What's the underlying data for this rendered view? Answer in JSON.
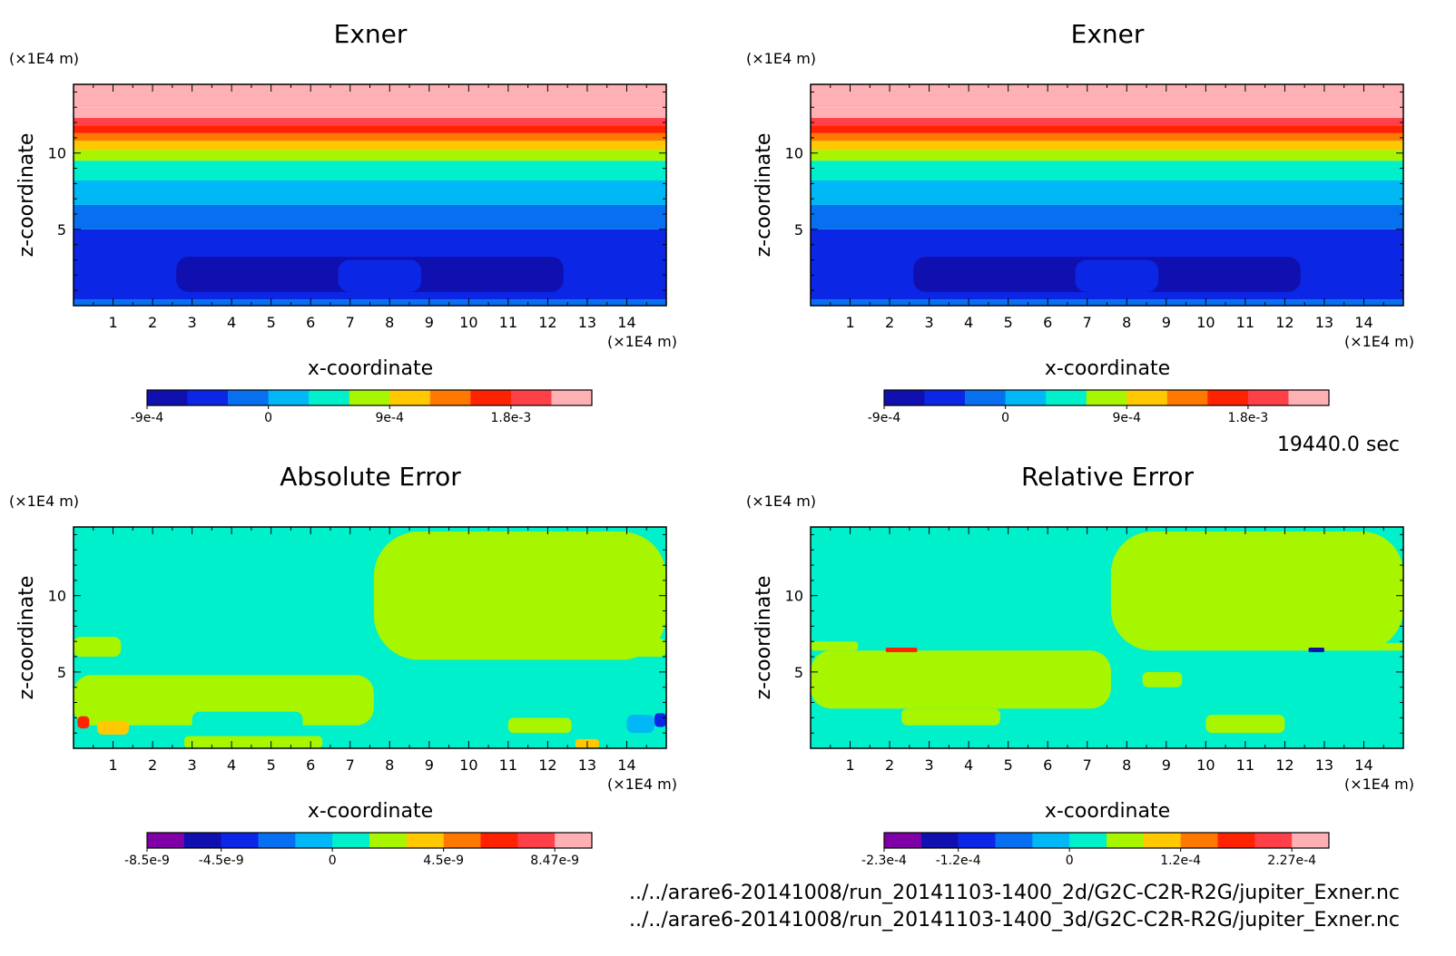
{
  "figure": {
    "time_label": "19440.0 sec",
    "files": [
      "../../arare6-20141008/run_20141103-1400_2d/G2C-C2R-R2G/jupiter_Exner.nc",
      "../../arare6-20141008/run_20141103-1400_3d/G2C-C2R-R2G/jupiter_Exner.nc"
    ]
  },
  "palette": {
    "p10": [
      "#1010b0",
      "#0c26e6",
      "#0670f0",
      "#00b8f5",
      "#00f0cc",
      "#a8f500",
      "#ffc800",
      "#ff7800",
      "#ff2200",
      "#ff4048",
      "#ffb0b4"
    ],
    "p12": [
      "#8000a8",
      "#1010b0",
      "#0c26e6",
      "#0670f0",
      "#00b8f5",
      "#00f0cc",
      "#a8f500",
      "#ffc800",
      "#ff7800",
      "#ff2200",
      "#ff4048",
      "#ffb0b4"
    ]
  },
  "chart_data": [
    {
      "type": "heatmap",
      "title": "Exner",
      "xlabel": "x-coordinate",
      "ylabel": "z-coordinate",
      "x_unit": "(×1E4 m)",
      "y_unit": "(×1E4 m)",
      "xlim": [
        0,
        15
      ],
      "ylim": [
        0,
        14.5
      ],
      "x_ticks": [
        "1",
        "2",
        "3",
        "4",
        "5",
        "6",
        "7",
        "8",
        "9",
        "10",
        "11",
        "12",
        "13",
        "14"
      ],
      "y_ticks": [
        "5",
        "10"
      ],
      "colorbar": {
        "palette": "p10",
        "labels": [
          "-9e-4",
          "0",
          "9e-4",
          "1.8e-3"
        ],
        "label_index": [
          0,
          3,
          6,
          9
        ]
      },
      "bands": [
        {
          "z": [
            0,
            0.4
          ],
          "level": 2
        },
        {
          "z": [
            0.4,
            5
          ],
          "level": 1
        },
        {
          "z": [
            5,
            6.6
          ],
          "level": 2
        },
        {
          "z": [
            6.6,
            8.2
          ],
          "level": 3
        },
        {
          "z": [
            8.2,
            9.5
          ],
          "level": 4
        },
        {
          "z": [
            9.5,
            10.2
          ],
          "level": 5
        },
        {
          "z": [
            10.2,
            10.8
          ],
          "level": 6
        },
        {
          "z": [
            10.8,
            11.3
          ],
          "level": 7
        },
        {
          "z": [
            11.3,
            11.8
          ],
          "level": 8
        },
        {
          "z": [
            11.8,
            12.3
          ],
          "level": 9
        },
        {
          "z": [
            12.3,
            13.0
          ],
          "level": 10
        },
        {
          "z": [
            13.0,
            14.5
          ],
          "level": 10
        }
      ],
      "regions": [
        {
          "level": 0,
          "x": [
            2.6,
            12.4
          ],
          "z": [
            0.9,
            3.2
          ]
        },
        {
          "level": 1,
          "x": [
            6.7,
            8.8
          ],
          "z": [
            0.9,
            3.0
          ]
        }
      ]
    },
    {
      "type": "heatmap",
      "title": "Exner",
      "xlabel": "x-coordinate",
      "ylabel": "z-coordinate",
      "x_unit": "(×1E4 m)",
      "y_unit": "(×1E4 m)",
      "xlim": [
        0,
        15
      ],
      "ylim": [
        0,
        14.5
      ],
      "x_ticks": [
        "1",
        "2",
        "3",
        "4",
        "5",
        "6",
        "7",
        "8",
        "9",
        "10",
        "11",
        "12",
        "13",
        "14"
      ],
      "y_ticks": [
        "5",
        "10"
      ],
      "colorbar": {
        "palette": "p10",
        "labels": [
          "-9e-4",
          "0",
          "9e-4",
          "1.8e-3"
        ],
        "label_index": [
          0,
          3,
          6,
          9
        ]
      },
      "bands": [
        {
          "z": [
            0,
            0.4
          ],
          "level": 2
        },
        {
          "z": [
            0.4,
            5
          ],
          "level": 1
        },
        {
          "z": [
            5,
            6.6
          ],
          "level": 2
        },
        {
          "z": [
            6.6,
            8.2
          ],
          "level": 3
        },
        {
          "z": [
            8.2,
            9.5
          ],
          "level": 4
        },
        {
          "z": [
            9.5,
            10.2
          ],
          "level": 5
        },
        {
          "z": [
            10.2,
            10.8
          ],
          "level": 6
        },
        {
          "z": [
            10.8,
            11.3
          ],
          "level": 7
        },
        {
          "z": [
            11.3,
            11.8
          ],
          "level": 8
        },
        {
          "z": [
            11.8,
            12.3
          ],
          "level": 9
        },
        {
          "z": [
            12.3,
            13.0
          ],
          "level": 10
        },
        {
          "z": [
            13.0,
            14.5
          ],
          "level": 10
        }
      ],
      "regions": [
        {
          "level": 0,
          "x": [
            2.6,
            12.4
          ],
          "z": [
            0.9,
            3.2
          ]
        },
        {
          "level": 1,
          "x": [
            6.7,
            8.8
          ],
          "z": [
            0.9,
            3.0
          ]
        }
      ]
    },
    {
      "type": "heatmap",
      "title": "Absolute Error",
      "xlabel": "x-coordinate",
      "ylabel": "z-coordinate",
      "x_unit": "(×1E4 m)",
      "y_unit": "(×1E4 m)",
      "xlim": [
        0,
        15
      ],
      "ylim": [
        0,
        14.5
      ],
      "x_ticks": [
        "1",
        "2",
        "3",
        "4",
        "5",
        "6",
        "7",
        "8",
        "9",
        "10",
        "11",
        "12",
        "13",
        "14"
      ],
      "y_ticks": [
        "5",
        "10"
      ],
      "colorbar": {
        "palette": "p12",
        "labels": [
          "-8.5e-9",
          "-4.5e-9",
          "0",
          "4.5e-9",
          "8.47e-9"
        ],
        "label_index": [
          0,
          2,
          5,
          8,
          11
        ]
      },
      "bands": [
        {
          "z": [
            0,
            14.5
          ],
          "level": 5
        }
      ],
      "regions": [
        {
          "level": 6,
          "x": [
            7.6,
            15
          ],
          "z": [
            5.8,
            14.2
          ]
        },
        {
          "level": 6,
          "x": [
            0,
            7.6
          ],
          "z": [
            1.5,
            4.8
          ]
        },
        {
          "level": 6,
          "x": [
            0,
            1.2
          ],
          "z": [
            6.0,
            7.3
          ]
        },
        {
          "level": 6,
          "x": [
            13.8,
            15
          ],
          "z": [
            6.0,
            7.2
          ]
        },
        {
          "level": 6,
          "x": [
            11.0,
            12.6
          ],
          "z": [
            1.0,
            2.0
          ]
        },
        {
          "level": 6,
          "x": [
            2.8,
            6.3
          ],
          "z": [
            0,
            0.8
          ]
        },
        {
          "level": 5,
          "x": [
            3.0,
            5.8
          ],
          "z": [
            1.0,
            2.4
          ]
        },
        {
          "level": 7,
          "x": [
            0.6,
            1.4
          ],
          "z": [
            0.9,
            1.8
          ]
        },
        {
          "level": 9,
          "x": [
            0.1,
            0.4
          ],
          "z": [
            1.3,
            2.1
          ]
        },
        {
          "level": 4,
          "x": [
            14.0,
            14.7
          ],
          "z": [
            1.0,
            2.2
          ]
        },
        {
          "level": 2,
          "x": [
            14.7,
            15
          ],
          "z": [
            1.4,
            2.3
          ]
        },
        {
          "level": 7,
          "x": [
            12.7,
            13.3
          ],
          "z": [
            0,
            0.6
          ]
        }
      ]
    },
    {
      "type": "heatmap",
      "title": "Relative Error",
      "xlabel": "x-coordinate",
      "ylabel": "z-coordinate",
      "x_unit": "(×1E4 m)",
      "y_unit": "(×1E4 m)",
      "xlim": [
        0,
        15
      ],
      "ylim": [
        0,
        14.5
      ],
      "x_ticks": [
        "1",
        "2",
        "3",
        "4",
        "5",
        "6",
        "7",
        "8",
        "9",
        "10",
        "11",
        "12",
        "13",
        "14"
      ],
      "y_ticks": [
        "5",
        "10"
      ],
      "colorbar": {
        "palette": "p12",
        "labels": [
          "-2.3e-4",
          "-1.2e-4",
          "0",
          "1.2e-4",
          "2.27e-4"
        ],
        "label_index": [
          0,
          2,
          5,
          8,
          11
        ]
      },
      "bands": [
        {
          "z": [
            0,
            14.5
          ],
          "level": 5
        }
      ],
      "regions": [
        {
          "level": 6,
          "x": [
            7.6,
            15
          ],
          "z": [
            6.4,
            14.2
          ]
        },
        {
          "level": 6,
          "x": [
            0,
            7.6
          ],
          "z": [
            2.6,
            6.4
          ]
        },
        {
          "level": 6,
          "x": [
            0,
            1.2
          ],
          "z": [
            6.4,
            7.0
          ]
        },
        {
          "level": 6,
          "x": [
            13.8,
            15
          ],
          "z": [
            6.4,
            6.9
          ]
        },
        {
          "level": 6,
          "x": [
            2.3,
            4.8
          ],
          "z": [
            1.5,
            2.6
          ]
        },
        {
          "level": 6,
          "x": [
            10.0,
            12.0
          ],
          "z": [
            1.0,
            2.2
          ]
        },
        {
          "level": 6,
          "x": [
            8.4,
            9.4
          ],
          "z": [
            4.0,
            5.0
          ]
        },
        {
          "level": 9,
          "x": [
            1.9,
            2.7
          ],
          "z": [
            6.3,
            6.6
          ]
        },
        {
          "level": 1,
          "x": [
            12.6,
            13.0
          ],
          "z": [
            6.3,
            6.6
          ]
        }
      ]
    }
  ]
}
